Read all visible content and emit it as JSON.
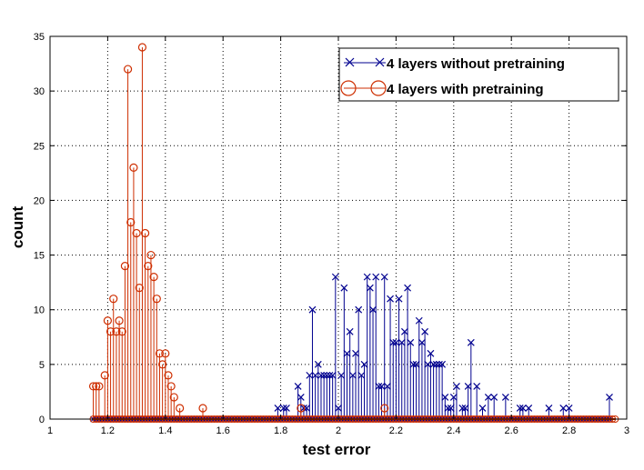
{
  "chart_data": {
    "type": "stem",
    "xlabel": "test error",
    "ylabel": "count",
    "xlim": [
      1,
      3
    ],
    "ylim": [
      0,
      35
    ],
    "xticks": [
      1,
      1.2,
      1.4,
      1.6,
      1.8,
      2,
      2.2,
      2.4,
      2.6,
      2.8,
      3
    ],
    "xtick_labels": [
      "1",
      "1.2",
      "1.4",
      "1.6",
      "1.8",
      "2",
      "2.2",
      "2.4",
      "2.6",
      "2.8",
      "3"
    ],
    "yticks": [
      0,
      5,
      10,
      15,
      20,
      25,
      30,
      35
    ],
    "ytick_labels": [
      "0",
      "5",
      "10",
      "15",
      "20",
      "25",
      "30",
      "35"
    ],
    "grid": true,
    "legend_position": "top-right",
    "series": [
      {
        "name": "4 layers without pretraining",
        "color": "#00008f",
        "marker": "x",
        "points": [
          [
            1.79,
            1
          ],
          [
            1.81,
            1
          ],
          [
            1.82,
            1
          ],
          [
            1.86,
            3
          ],
          [
            1.87,
            2
          ],
          [
            1.88,
            1
          ],
          [
            1.89,
            1
          ],
          [
            1.9,
            4
          ],
          [
            1.91,
            10
          ],
          [
            1.92,
            4
          ],
          [
            1.93,
            5
          ],
          [
            1.94,
            4
          ],
          [
            1.95,
            4
          ],
          [
            1.96,
            4
          ],
          [
            1.97,
            4
          ],
          [
            1.98,
            4
          ],
          [
            1.99,
            13
          ],
          [
            2.0,
            1
          ],
          [
            2.01,
            4
          ],
          [
            2.02,
            12
          ],
          [
            2.03,
            6
          ],
          [
            2.04,
            8
          ],
          [
            2.05,
            4
          ],
          [
            2.06,
            6
          ],
          [
            2.07,
            10
          ],
          [
            2.08,
            4
          ],
          [
            2.09,
            5
          ],
          [
            2.1,
            13
          ],
          [
            2.11,
            12
          ],
          [
            2.12,
            10
          ],
          [
            2.13,
            13
          ],
          [
            2.14,
            3
          ],
          [
            2.15,
            3
          ],
          [
            2.16,
            13
          ],
          [
            2.17,
            3
          ],
          [
            2.18,
            11
          ],
          [
            2.19,
            7
          ],
          [
            2.2,
            7
          ],
          [
            2.21,
            11
          ],
          [
            2.22,
            7
          ],
          [
            2.23,
            8
          ],
          [
            2.24,
            12
          ],
          [
            2.25,
            7
          ],
          [
            2.26,
            5
          ],
          [
            2.27,
            5
          ],
          [
            2.28,
            9
          ],
          [
            2.29,
            7
          ],
          [
            2.3,
            8
          ],
          [
            2.31,
            5
          ],
          [
            2.32,
            6
          ],
          [
            2.33,
            5
          ],
          [
            2.34,
            5
          ],
          [
            2.35,
            5
          ],
          [
            2.36,
            5
          ],
          [
            2.37,
            2
          ],
          [
            2.38,
            1
          ],
          [
            2.39,
            1
          ],
          [
            2.4,
            2
          ],
          [
            2.41,
            3
          ],
          [
            2.43,
            1
          ],
          [
            2.44,
            1
          ],
          [
            2.45,
            3
          ],
          [
            2.46,
            7
          ],
          [
            2.48,
            3
          ],
          [
            2.5,
            1
          ],
          [
            2.52,
            2
          ],
          [
            2.54,
            2
          ],
          [
            2.58,
            2
          ],
          [
            2.63,
            1
          ],
          [
            2.64,
            1
          ],
          [
            2.66,
            1
          ],
          [
            2.73,
            1
          ],
          [
            2.78,
            1
          ],
          [
            2.8,
            1
          ],
          [
            2.94,
            2
          ]
        ]
      },
      {
        "name": "4 layers with pretraining",
        "color": "#ce2e00",
        "marker": "o",
        "points": [
          [
            1.15,
            3
          ],
          [
            1.16,
            3
          ],
          [
            1.17,
            3
          ],
          [
            1.19,
            4
          ],
          [
            1.2,
            9
          ],
          [
            1.21,
            8
          ],
          [
            1.22,
            11
          ],
          [
            1.23,
            8
          ],
          [
            1.24,
            9
          ],
          [
            1.25,
            8
          ],
          [
            1.26,
            14
          ],
          [
            1.27,
            32
          ],
          [
            1.28,
            18
          ],
          [
            1.29,
            23
          ],
          [
            1.3,
            17
          ],
          [
            1.31,
            12
          ],
          [
            1.32,
            34
          ],
          [
            1.33,
            17
          ],
          [
            1.34,
            14
          ],
          [
            1.35,
            15
          ],
          [
            1.36,
            13
          ],
          [
            1.37,
            11
          ],
          [
            1.38,
            6
          ],
          [
            1.39,
            5
          ],
          [
            1.4,
            6
          ],
          [
            1.41,
            4
          ],
          [
            1.42,
            3
          ],
          [
            1.43,
            2
          ],
          [
            1.45,
            1
          ],
          [
            1.53,
            1
          ],
          [
            1.87,
            1
          ],
          [
            2.16,
            1
          ]
        ]
      }
    ]
  }
}
